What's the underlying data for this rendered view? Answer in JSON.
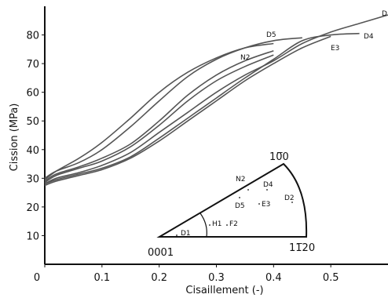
{
  "chart_data": {
    "type": "line",
    "title": "",
    "xlabel": "Cisaillement (-)",
    "ylabel": "Cission (MPa)",
    "xlim": [
      0,
      0.6
    ],
    "ylim": [
      0,
      90
    ],
    "x_ticks": [
      "0",
      "0.1",
      "0.2",
      "0.3",
      "0.4",
      "0.5"
    ],
    "x_tick_values": [
      0,
      0.1,
      0.2,
      0.3,
      0.4,
      0.5
    ],
    "y_ticks": [
      "10",
      "20",
      "30",
      "40",
      "50",
      "60",
      "70",
      "80"
    ],
    "y_tick_values": [
      10,
      20,
      30,
      40,
      50,
      60,
      70,
      80
    ],
    "grid": false,
    "line_color": "#555555",
    "series": [
      {
        "name": "D2",
        "label": "D",
        "x": [
          0,
          0.02,
          0.06,
          0.1,
          0.15,
          0.2,
          0.25,
          0.3,
          0.35,
          0.4,
          0.45,
          0.5,
          0.55,
          0.6
        ],
        "y": [
          28,
          30,
          32,
          34.5,
          39,
          46,
          53,
          60,
          66,
          71,
          77,
          81,
          84,
          87
        ]
      },
      {
        "name": "D4",
        "label": "D4",
        "x": [
          0,
          0.02,
          0.06,
          0.1,
          0.15,
          0.2,
          0.25,
          0.3,
          0.35,
          0.4,
          0.45,
          0.5,
          0.55
        ],
        "y": [
          28,
          29.5,
          31.5,
          33.5,
          37.5,
          44,
          51,
          58,
          65,
          71.5,
          78,
          80,
          80.5
        ]
      },
      {
        "name": "E3",
        "label": "E3",
        "x": [
          0,
          0.02,
          0.06,
          0.1,
          0.15,
          0.2,
          0.25,
          0.3,
          0.35,
          0.4,
          0.45,
          0.5
        ],
        "y": [
          27.5,
          29,
          31,
          33,
          37,
          43,
          50,
          57,
          64,
          70,
          75.5,
          79.5
        ]
      },
      {
        "name": "D5",
        "label": "D5",
        "x": [
          0,
          0.02,
          0.06,
          0.1,
          0.15,
          0.2,
          0.25,
          0.3,
          0.35,
          0.4,
          0.45
        ],
        "y": [
          30,
          32.5,
          35.5,
          40,
          48,
          57,
          65.5,
          71.5,
          75.5,
          78,
          79
        ]
      },
      {
        "name": "N2",
        "label": "N2",
        "x": [
          0,
          0.02,
          0.06,
          0.1,
          0.15,
          0.2,
          0.25,
          0.3,
          0.35,
          0.4
        ],
        "y": [
          29.5,
          32.5,
          37,
          42.5,
          51,
          60,
          67,
          72,
          75.5,
          77
        ]
      },
      {
        "name": "F2",
        "label": "",
        "x": [
          0,
          0.02,
          0.06,
          0.1,
          0.15,
          0.2,
          0.25,
          0.3,
          0.35,
          0.4
        ],
        "y": [
          29,
          31.5,
          34,
          37,
          42,
          50,
          59,
          66,
          71,
          74.5
        ]
      },
      {
        "name": "H1",
        "label": "",
        "x": [
          0,
          0.02,
          0.06,
          0.1,
          0.15,
          0.2,
          0.25,
          0.3,
          0.35,
          0.4
        ],
        "y": [
          28.5,
          31,
          33.5,
          36,
          41,
          48.5,
          57,
          64,
          69,
          73
        ]
      }
    ],
    "inset": {
      "type": "stereographic-triangle",
      "corners": [
        "0001",
        "10̅0",
        "11̅20"
      ],
      "points": [
        "D1",
        "H1",
        "F2",
        "D5",
        "E3",
        "N2",
        "D4",
        "D2"
      ]
    }
  }
}
